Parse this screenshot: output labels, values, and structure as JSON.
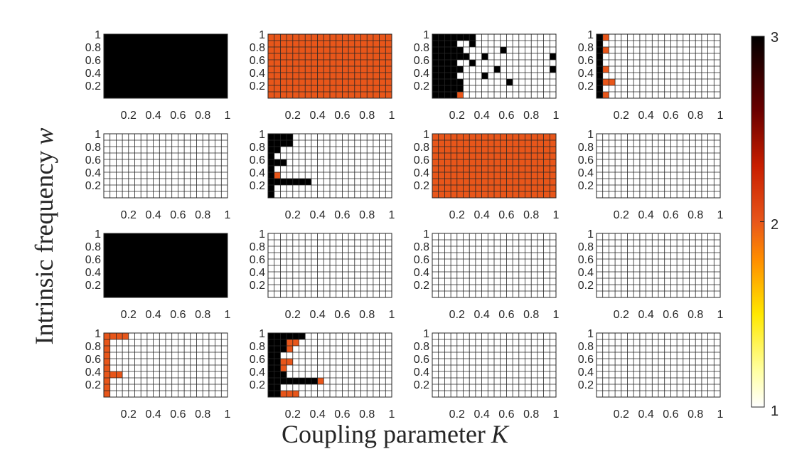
{
  "chart_data": {
    "type": "heatmap",
    "layout": "4x4 grid of panels sharing one colorbar",
    "xlabel": "Coupling parameter",
    "xlabel_symbol": "K",
    "ylabel": "Intrinsic frequency",
    "ylabel_symbol": "w",
    "x_ticks": [
      "0.2",
      "0.4",
      "0.6",
      "0.8",
      "1"
    ],
    "y_ticks": [
      "1",
      "0.8",
      "0.6",
      "0.4",
      "0.2"
    ],
    "xlim": [
      0,
      1
    ],
    "ylim": [
      0,
      1
    ],
    "grid": true,
    "grid_size": {
      "k_steps": 20,
      "w_steps": 10
    },
    "colorbar": {
      "ticks": [
        "3",
        "2",
        "1"
      ],
      "range": [
        1,
        3
      ],
      "colormap": "hot (white to black)",
      "colors": {
        "1": "#ffffff",
        "2": "#e8561a",
        "3": "#000000"
      }
    },
    "panels": [
      {
        "fill": 3,
        "regions": []
      },
      {
        "fill": 2,
        "regions": []
      },
      {
        "fill": 1,
        "regions": [
          {
            "w": [
              0.0,
              1.0
            ],
            "k": [
              0.0,
              0.2
            ],
            "v": 3
          },
          {
            "w": [
              0.9,
              1.0
            ],
            "k": [
              0.2,
              0.35
            ],
            "v": 3
          },
          {
            "w": [
              0.8,
              0.9
            ],
            "k": [
              0.3,
              0.35
            ],
            "v": 3
          },
          {
            "w": [
              0.7,
              0.8
            ],
            "k": [
              0.2,
              0.25
            ],
            "v": 3
          },
          {
            "w": [
              0.6,
              0.7
            ],
            "k": [
              0.2,
              0.3
            ],
            "v": 3
          },
          {
            "w": [
              0.4,
              0.5
            ],
            "k": [
              0.2,
              0.25
            ],
            "v": 3
          },
          {
            "w": [
              0.2,
              0.3
            ],
            "k": [
              0.2,
              0.25
            ],
            "v": 3
          },
          {
            "w": [
              0.1,
              0.2
            ],
            "k": [
              0.2,
              0.25
            ],
            "v": 3
          },
          {
            "w": [
              0.0,
              0.1
            ],
            "k": [
              0.2,
              0.25
            ],
            "v": 2
          },
          {
            "w": [
              0.7,
              0.8
            ],
            "k": [
              0.55,
              0.6
            ],
            "v": 3
          },
          {
            "w": [
              0.6,
              0.7
            ],
            "k": [
              0.4,
              0.45
            ],
            "v": 3
          },
          {
            "w": [
              0.5,
              0.6
            ],
            "k": [
              0.3,
              0.35
            ],
            "v": 3
          },
          {
            "w": [
              0.4,
              0.5
            ],
            "k": [
              0.5,
              0.55
            ],
            "v": 3
          },
          {
            "w": [
              0.3,
              0.4
            ],
            "k": [
              0.4,
              0.45
            ],
            "v": 3
          },
          {
            "w": [
              0.2,
              0.3
            ],
            "k": [
              0.6,
              0.65
            ],
            "v": 3
          },
          {
            "w": [
              0.6,
              0.7
            ],
            "k": [
              0.95,
              1.0
            ],
            "v": 3
          },
          {
            "w": [
              0.4,
              0.5
            ],
            "k": [
              0.95,
              1.0
            ],
            "v": 3
          }
        ]
      },
      {
        "fill": 1,
        "regions": [
          {
            "w": [
              0.0,
              1.0
            ],
            "k": [
              0.0,
              0.05
            ],
            "v": 3
          },
          {
            "w": [
              0.9,
              1.0
            ],
            "k": [
              0.05,
              0.1
            ],
            "v": 2
          },
          {
            "w": [
              0.7,
              0.8
            ],
            "k": [
              0.05,
              0.1
            ],
            "v": 2
          },
          {
            "w": [
              0.4,
              0.5
            ],
            "k": [
              0.05,
              0.1
            ],
            "v": 2
          },
          {
            "w": [
              0.2,
              0.3
            ],
            "k": [
              0.05,
              0.15
            ],
            "v": 2
          },
          {
            "w": [
              0.0,
              0.1
            ],
            "k": [
              0.05,
              0.1
            ],
            "v": 2
          }
        ]
      },
      {
        "fill": 1,
        "regions": []
      },
      {
        "fill": 1,
        "regions": [
          {
            "w": [
              0.0,
              1.0
            ],
            "k": [
              0.0,
              0.05
            ],
            "v": 3
          },
          {
            "w": [
              0.9,
              1.0
            ],
            "k": [
              0.05,
              0.2
            ],
            "v": 3
          },
          {
            "w": [
              0.8,
              0.9
            ],
            "k": [
              0.05,
              0.2
            ],
            "v": 3
          },
          {
            "w": [
              0.7,
              0.8
            ],
            "k": [
              0.05,
              0.1
            ],
            "v": 3
          },
          {
            "w": [
              0.5,
              0.6
            ],
            "k": [
              0.05,
              0.15
            ],
            "v": 3
          },
          {
            "w": [
              0.3,
              0.4
            ],
            "k": [
              0.05,
              0.1
            ],
            "v": 2
          },
          {
            "w": [
              0.2,
              0.3
            ],
            "k": [
              0.05,
              0.35
            ],
            "v": 3
          }
        ]
      },
      {
        "fill": 2,
        "regions": []
      },
      {
        "fill": 1,
        "regions": []
      },
      {
        "fill": 3,
        "regions": []
      },
      {
        "fill": 1,
        "regions": []
      },
      {
        "fill": 1,
        "regions": []
      },
      {
        "fill": 1,
        "regions": []
      },
      {
        "fill": 1,
        "regions": [
          {
            "w": [
              0.0,
              1.0
            ],
            "k": [
              0.0,
              0.05
            ],
            "v": 2
          },
          {
            "w": [
              0.9,
              1.0
            ],
            "k": [
              0.05,
              0.2
            ],
            "v": 2
          },
          {
            "w": [
              0.3,
              0.4
            ],
            "k": [
              0.05,
              0.15
            ],
            "v": 2
          }
        ]
      },
      {
        "fill": 1,
        "regions": [
          {
            "w": [
              0.0,
              1.0
            ],
            "k": [
              0.0,
              0.1
            ],
            "v": 3
          },
          {
            "w": [
              0.9,
              1.0
            ],
            "k": [
              0.1,
              0.3
            ],
            "v": 3
          },
          {
            "w": [
              0.8,
              0.9
            ],
            "k": [
              0.1,
              0.15
            ],
            "v": 3
          },
          {
            "w": [
              0.8,
              0.9
            ],
            "k": [
              0.15,
              0.25
            ],
            "v": 2
          },
          {
            "w": [
              0.7,
              0.8
            ],
            "k": [
              0.1,
              0.15
            ],
            "v": 3
          },
          {
            "w": [
              0.7,
              0.8
            ],
            "k": [
              0.15,
              0.2
            ],
            "v": 2
          },
          {
            "w": [
              0.5,
              0.6
            ],
            "k": [
              0.1,
              0.2
            ],
            "v": 2
          },
          {
            "w": [
              0.4,
              0.5
            ],
            "k": [
              0.1,
              0.15
            ],
            "v": 2
          },
          {
            "w": [
              0.3,
              0.4
            ],
            "k": [
              0.1,
              0.15
            ],
            "v": 3
          },
          {
            "w": [
              0.2,
              0.3
            ],
            "k": [
              0.1,
              0.4
            ],
            "v": 3
          },
          {
            "w": [
              0.2,
              0.3
            ],
            "k": [
              0.4,
              0.45
            ],
            "v": 2
          },
          {
            "w": [
              0.0,
              0.1
            ],
            "k": [
              0.1,
              0.25
            ],
            "v": 2
          }
        ]
      },
      {
        "fill": 1,
        "regions": []
      },
      {
        "fill": 1,
        "regions": []
      }
    ]
  }
}
